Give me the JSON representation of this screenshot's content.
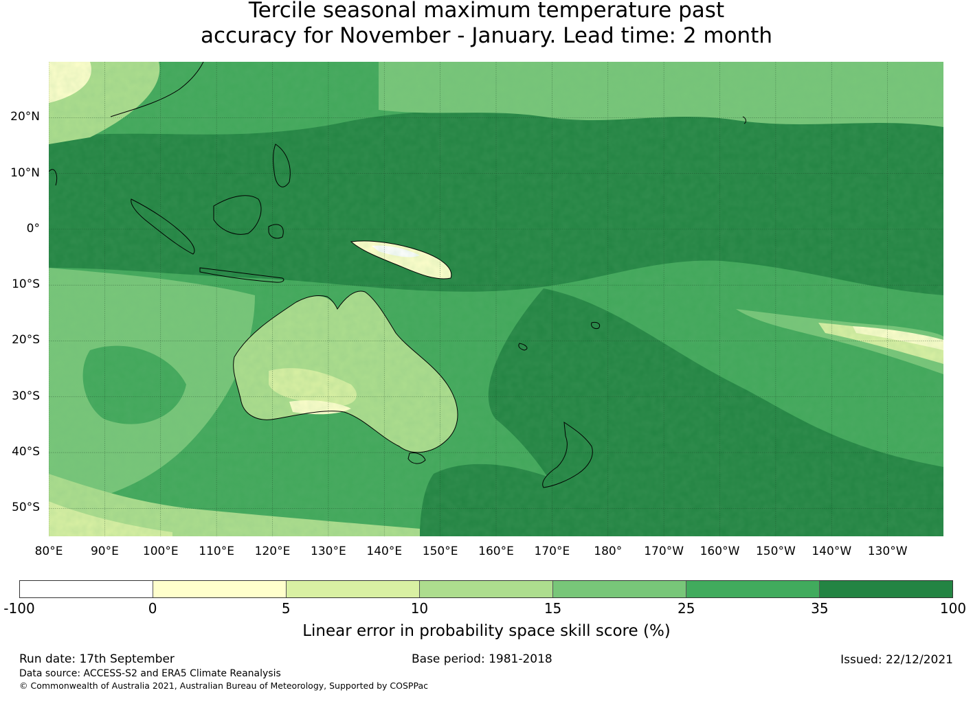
{
  "title_line1": "Tercile seasonal maximum temperature past",
  "title_line2": "accuracy for November - January. Lead time: 2 month",
  "map": {
    "lat_labels": [
      "20°N",
      "10°N",
      "0°",
      "10°S",
      "20°S",
      "30°S",
      "40°S",
      "50°S"
    ],
    "lat_values": [
      20,
      10,
      0,
      -10,
      -20,
      -30,
      -40,
      -50
    ],
    "lon_labels": [
      "80°E",
      "90°E",
      "100°E",
      "110°E",
      "120°E",
      "130°E",
      "140°E",
      "150°E",
      "160°E",
      "170°E",
      "180°",
      "170°W",
      "160°W",
      "150°W",
      "140°W",
      "130°W"
    ],
    "lon_values": [
      80,
      90,
      100,
      110,
      120,
      130,
      140,
      150,
      160,
      170,
      180,
      190,
      200,
      210,
      220,
      230
    ],
    "lat_range": [
      -55,
      30
    ],
    "lon_range": [
      80,
      240
    ]
  },
  "colorbar": {
    "ticks": [
      "-100",
      "0",
      "5",
      "10",
      "15",
      "25",
      "35",
      "100"
    ],
    "colors": [
      "#ffffff",
      "#ffffcc",
      "#d9f0a3",
      "#addd8e",
      "#78c679",
      "#41ab5d",
      "#238443"
    ],
    "label": "Linear error in probability space skill score (%)"
  },
  "footer": {
    "run_date": "Run date: 17th September",
    "base_period": "Base period: 1981-2018",
    "issued": "Issued: 22/12/2021",
    "data_source": "Data source: ACCESS-S2 and ERA5 Climate Reanalysis",
    "copyright": "© Commonwealth of Australia 2021, Australian Bureau of Meteorology, Supported by COSPPac"
  }
}
